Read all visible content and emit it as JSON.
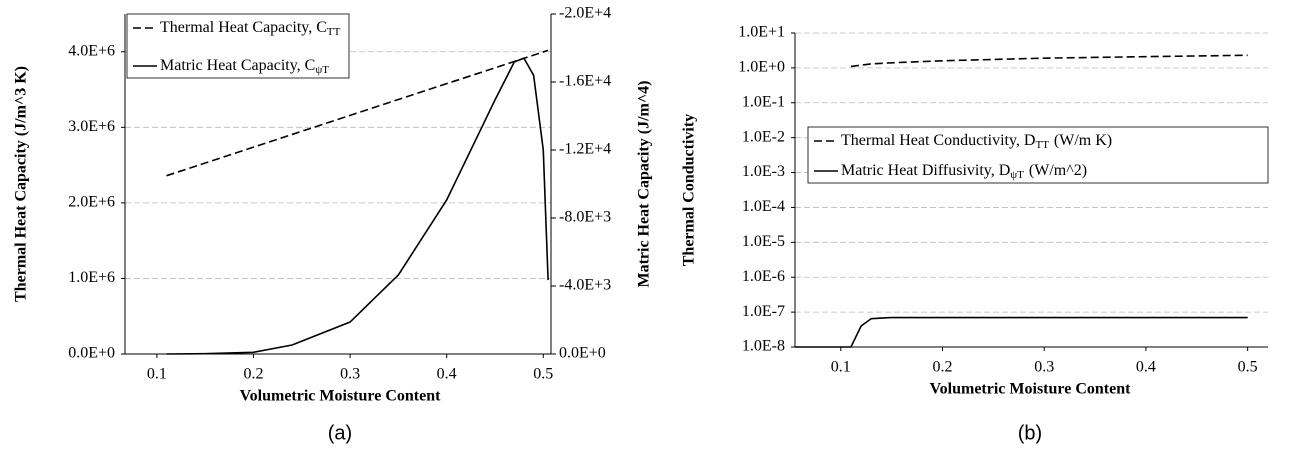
{
  "chart_data": [
    {
      "type": "line",
      "caption": "(a)",
      "xlabel": "Volumetric Moisture Content",
      "ylabel": "Thermal Heat Capacity (J/m^3 K)",
      "y2label": "Matric Heat Capacity (J/m^4)",
      "legend": "upper left",
      "grid": true,
      "x": [
        0.11,
        0.15,
        0.2,
        0.24,
        0.3,
        0.35,
        0.4,
        0.45,
        0.47,
        0.48,
        0.49,
        0.5,
        0.505
      ],
      "xlim": [
        0.067,
        0.508
      ],
      "xticks": [
        0.1,
        0.2,
        0.3,
        0.4,
        0.5
      ],
      "ylim": [
        0,
        4500000
      ],
      "yticks": [
        {
          "value": 0,
          "label": "0.0E+0"
        },
        {
          "value": 1000000,
          "label": "1.0E+6"
        },
        {
          "value": 2000000,
          "label": "2.0E+6"
        },
        {
          "value": 3000000,
          "label": "3.0E+6"
        },
        {
          "value": 4000000,
          "label": "4.0E+6"
        }
      ],
      "y2lim": [
        0,
        -20000
      ],
      "y2ticks": [
        {
          "value": 0,
          "label": "0.0E+0"
        },
        {
          "value": -4000,
          "label": "-4.0E+3"
        },
        {
          "value": -8000,
          "label": "-8.0E+3"
        },
        {
          "value": -12000,
          "label": "-1.2E+4"
        },
        {
          "value": -16000,
          "label": "-1.6E+4"
        },
        {
          "value": -20000,
          "label": "-2.0E+4"
        }
      ],
      "series": [
        {
          "name": "Thermal Heat Capacity, C",
          "name_sub": "TT",
          "color": "#000000",
          "dash": true,
          "values": [
            2360000,
            2528000,
            2738000,
            2906000,
            3158000,
            3368000,
            3578000,
            3788000,
            3872000,
            3914000,
            3956000,
            3998000,
            4019000
          ]
        },
        {
          "name": "Matric Heat Capacity, C",
          "name_sub": "ψT",
          "color": "#000000",
          "dash": false,
          "axis": "y2",
          "values": [
            0,
            -20,
            -100,
            -530,
            -1880,
            -4650,
            -9060,
            -14940,
            -17180,
            -17400,
            -16400,
            -12000,
            -4350
          ]
        }
      ]
    },
    {
      "type": "line",
      "caption": "(b)",
      "xlabel": "Volumetric Moisture Content",
      "ylabel": "Thermal Conductivity",
      "legend": "center left",
      "grid": true,
      "log_y": true,
      "x": [
        0.055,
        0.1,
        0.11,
        0.12,
        0.13,
        0.15,
        0.2,
        0.3,
        0.4,
        0.5
      ],
      "xlim": [
        0.055,
        0.52
      ],
      "xticks": [
        0.1,
        0.2,
        0.3,
        0.4,
        0.5
      ],
      "ylim": [
        1e-08,
        10
      ],
      "yticks": [
        {
          "value": 1e-08,
          "label": "1.0E-8"
        },
        {
          "value": 1e-07,
          "label": "1.0E-7"
        },
        {
          "value": 1e-06,
          "label": "1.0E-6"
        },
        {
          "value": 1e-05,
          "label": "1.0E-5"
        },
        {
          "value": 0.0001,
          "label": "1.0E-4"
        },
        {
          "value": 0.001,
          "label": "1.0E-3"
        },
        {
          "value": 0.01,
          "label": "1.0E-2"
        },
        {
          "value": 0.1,
          "label": "1.0E-1"
        },
        {
          "value": 1,
          "label": "1.0E+0"
        },
        {
          "value": 10,
          "label": "1.0E+1"
        }
      ],
      "series": [
        {
          "name": "Thermal Heat Conductivity, D",
          "name_sub": "TT",
          "name_suffix": "(W/m K)",
          "color": "#000000",
          "dash": true,
          "values": [
            null,
            null,
            1.1,
            1.2,
            1.3,
            1.4,
            1.6,
            1.9,
            2.1,
            2.3
          ]
        },
        {
          "name": "Matric Heat Diffusivity, D",
          "name_sub": "ψT",
          "name_suffix": "(W/m^2)",
          "color": "#000000",
          "dash": false,
          "values": [
            1e-08,
            1e-08,
            1e-08,
            4e-08,
            6.5e-08,
            7e-08,
            7e-08,
            7e-08,
            7e-08,
            7e-08
          ]
        }
      ]
    }
  ]
}
